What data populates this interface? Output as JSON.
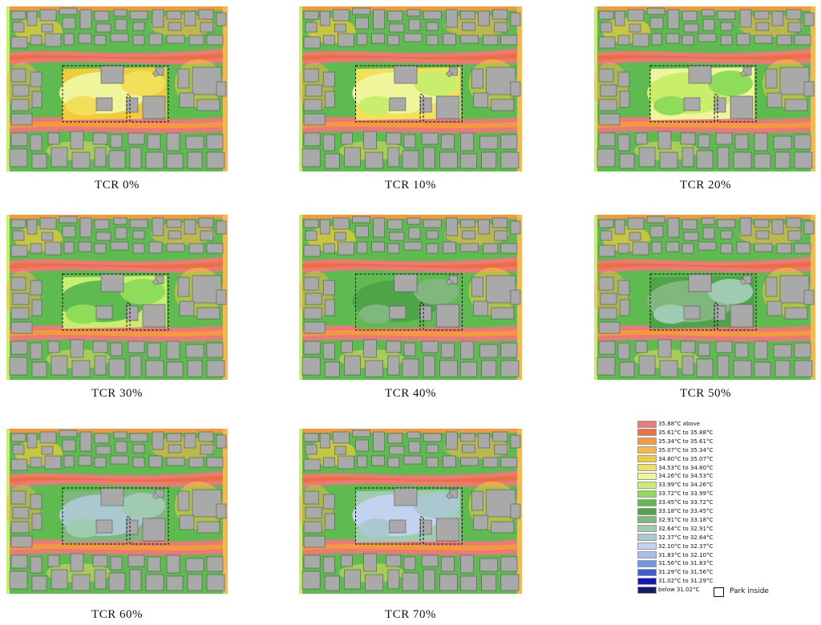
{
  "panels": [
    {
      "caption": "TCR  0%",
      "tcr": 0
    },
    {
      "caption": "TCR  10%",
      "tcr": 10
    },
    {
      "caption": "TCR  20%",
      "tcr": 20
    },
    {
      "caption": "TCR  30%",
      "tcr": 30
    },
    {
      "caption": "TCR  40%",
      "tcr": 40
    },
    {
      "caption": "TCR  50%",
      "tcr": 50
    },
    {
      "caption": "TCR  60%",
      "tcr": 60
    },
    {
      "caption": "TCR  70%",
      "tcr": 70
    }
  ],
  "legend": {
    "items": [
      {
        "label": "35.88°C above",
        "color": "#e97a7a"
      },
      {
        "label": "35.61°C to 35.88°C",
        "color": "#ee6f3e"
      },
      {
        "label": "35.34°C to 35.61°C",
        "color": "#f39a3c"
      },
      {
        "label": "35.07°C to 35.34°C",
        "color": "#f6b74d"
      },
      {
        "label": "34.80°C to 35.07°C",
        "color": "#f1cc3a"
      },
      {
        "label": "34.53°C to 34.80°C",
        "color": "#f2e05b"
      },
      {
        "label": "34.26°C to 34.53°C",
        "color": "#eef59a"
      },
      {
        "label": "33.99°C to 34.26°C",
        "color": "#c9ee6c"
      },
      {
        "label": "33.72°C to 33.99°C",
        "color": "#8fdc5a"
      },
      {
        "label": "33.45°C to 33.72°C",
        "color": "#5dbb4f"
      },
      {
        "label": "33.18°C to 33.45°C",
        "color": "#4ea548"
      },
      {
        "label": "32.91°C to 33.18°C",
        "color": "#7fb77f"
      },
      {
        "label": "32.64°C to 32.91°C",
        "color": "#9fccb0"
      },
      {
        "label": "32.37°C to 32.64°C",
        "color": "#a9c8cf"
      },
      {
        "label": "32.10°C to 32.37°C",
        "color": "#c3d3ef"
      },
      {
        "label": "31.83°C to 32.10°C",
        "color": "#a7bfee"
      },
      {
        "label": "31.56°C to 31.83°C",
        "color": "#6f95e6"
      },
      {
        "label": "31.29°C to 31.56°C",
        "color": "#3c5fd8"
      },
      {
        "label": "31.02°C to 31.29°C",
        "color": "#1616c4"
      },
      {
        "label": "below 31.02°C",
        "color": "#141c6a"
      }
    ],
    "park_label": "Park inside"
  }
}
